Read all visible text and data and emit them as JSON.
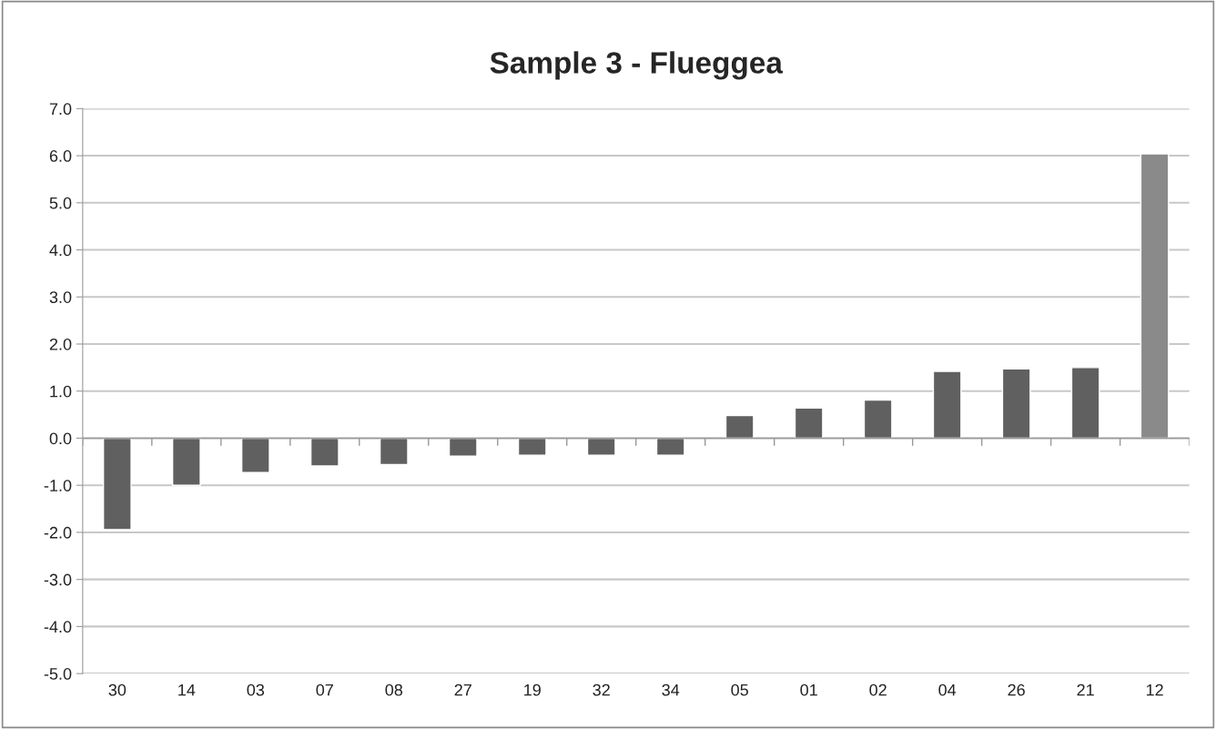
{
  "chart_data": {
    "type": "bar",
    "title": "Sample 3 - Flueggea",
    "categories": [
      "30",
      "14",
      "03",
      "07",
      "08",
      "27",
      "19",
      "32",
      "34",
      "05",
      "01",
      "02",
      "04",
      "26",
      "21",
      "12"
    ],
    "values": [
      -1.94,
      -1.0,
      -0.73,
      -0.59,
      -0.56,
      -0.38,
      -0.36,
      -0.36,
      -0.36,
      0.48,
      0.64,
      0.81,
      1.42,
      1.47,
      1.5,
      6.04
    ],
    "colors": [
      "#606060",
      "#606060",
      "#606060",
      "#606060",
      "#606060",
      "#606060",
      "#606060",
      "#606060",
      "#606060",
      "#606060",
      "#606060",
      "#606060",
      "#606060",
      "#606060",
      "#606060",
      "#8a8a8a"
    ],
    "ylim": [
      -5,
      7
    ],
    "yticks": [
      {
        "value": -5,
        "label": "-5.0"
      },
      {
        "value": -4,
        "label": "-4.0"
      },
      {
        "value": -3,
        "label": "-3.0"
      },
      {
        "value": -2,
        "label": "-2.0"
      },
      {
        "value": -1,
        "label": "-1.0"
      },
      {
        "value": 0,
        "label": "0.0"
      },
      {
        "value": 1,
        "label": "1.0"
      },
      {
        "value": 2,
        "label": "2.0"
      },
      {
        "value": 3,
        "label": "3.0"
      },
      {
        "value": 4,
        "label": "4.0"
      },
      {
        "value": 5,
        "label": "5.0"
      },
      {
        "value": 6,
        "label": "6.0"
      },
      {
        "value": 7,
        "label": "7.0"
      }
    ],
    "grid": "y",
    "legend": false
  }
}
